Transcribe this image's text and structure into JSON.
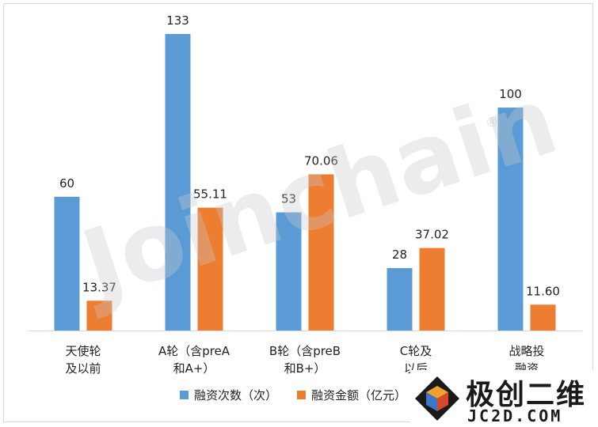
{
  "chart_data": {
    "type": "bar",
    "categories": [
      [
        "天使轮",
        "及以前"
      ],
      [
        "A轮（含preA",
        "和A+）"
      ],
      [
        "B轮（含preB",
        "和B+）"
      ],
      [
        "C轮及",
        "以后"
      ],
      [
        "战略投",
        "融资"
      ]
    ],
    "series": [
      {
        "name": "融资次数（次）",
        "values": [
          60,
          133,
          53,
          28,
          100
        ],
        "labels": [
          "60",
          "133",
          "53",
          "28",
          "100"
        ],
        "color": "#5b9bd5"
      },
      {
        "name": "融资金额（亿元）",
        "values": [
          13.37,
          55.11,
          70.06,
          37.02,
          11.6
        ],
        "labels": [
          "13.37",
          "55.11",
          "70.06",
          "37.02",
          "11.60"
        ],
        "color": "#ed7d31"
      }
    ],
    "ylim": [
      0,
      133
    ],
    "grid": false,
    "legend": "bottom-center"
  },
  "watermark": {
    "text": "Joinchain",
    "mark": "®"
  },
  "corner_logo": {
    "title": "极创二维",
    "subtitle": "JC2D.COM"
  }
}
